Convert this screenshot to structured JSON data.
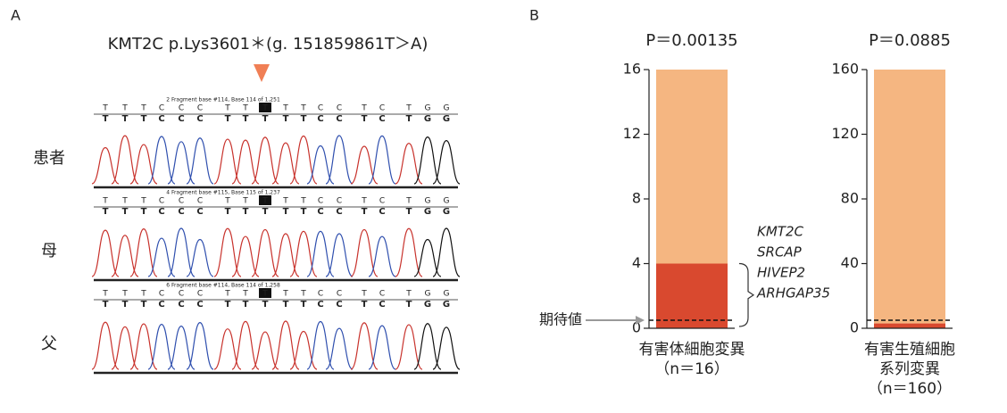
{
  "panel_a": {
    "label": "A",
    "title": "KMT2C p.Lys3601＊(g. 151859861T＞A)",
    "bases": [
      "T",
      "T",
      "T",
      "C",
      "C",
      "C",
      "T",
      "T",
      "T",
      "T",
      "T",
      "C",
      "C",
      "T",
      "C",
      "T",
      "G",
      "G"
    ],
    "rows": [
      {
        "label": "患者",
        "header": "2 Fragment base #114, Base 114 of 1,251"
      },
      {
        "label": "母",
        "header": "4 Fragment base #115, Base 115 of 1,237"
      },
      {
        "label": "父",
        "header": "6 Fragment base #114, Base 114 of 1,258"
      }
    ]
  },
  "panel_b": {
    "label": "B"
  },
  "chart_data": [
    {
      "type": "bar",
      "stacked": true,
      "title": "P＝0.00135",
      "category_lines": [
        "有害体細胞変異",
        "（n＝16）"
      ],
      "series": [
        {
          "color": "#d9492f",
          "values": [
            4
          ]
        },
        {
          "color": "#f5b681",
          "values": [
            12
          ]
        }
      ],
      "ylim": [
        0,
        16
      ],
      "yticks": [
        0,
        4,
        8,
        12,
        16
      ],
      "expected": 0.5,
      "expected_label": "期待値",
      "annotations": [
        "KMT2C",
        "SRCAP",
        "HIVEP2",
        "ARHGAP35"
      ]
    },
    {
      "type": "bar",
      "stacked": true,
      "title": "P＝0.0885",
      "category_lines": [
        "有害生殖細胞",
        "系列変異",
        "（n＝160）"
      ],
      "series": [
        {
          "color": "#d9492f",
          "values": [
            3
          ]
        },
        {
          "color": "#f5b681",
          "values": [
            157
          ]
        }
      ],
      "ylim": [
        0,
        160
      ],
      "yticks": [
        0,
        40,
        80,
        120,
        160
      ],
      "expected": 5
    }
  ]
}
